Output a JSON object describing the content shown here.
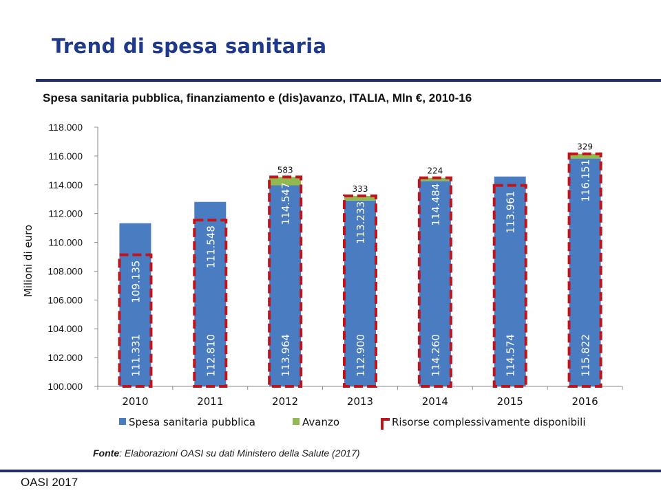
{
  "slide_title": "Trend di spesa sanitaria",
  "footer": "OASI 2017",
  "source": {
    "label": "Fonte",
    "text": ": Elaborazioni OASI su dati Ministero della Salute (2017)"
  },
  "colors": {
    "spesa": "#4a7cc2",
    "avanzo": "#92b94f",
    "risorse": "#c0141c",
    "title": "#1f3a8a",
    "rule": "#1f2f6e"
  },
  "chart_data": {
    "type": "bar",
    "title": "Spesa sanitaria pubblica, finanziamento e (dis)avanzo, ITALIA, Mln €, 2010-16",
    "ylabel": "Milioni di euro",
    "ylim": [
      100000,
      118000
    ],
    "yticks": [
      100000,
      102000,
      104000,
      106000,
      108000,
      110000,
      112000,
      114000,
      116000,
      118000
    ],
    "ytick_labels": [
      "100.000",
      "102.000",
      "104.000",
      "106.000",
      "108.000",
      "110.000",
      "112.000",
      "114.000",
      "116.000",
      "118.000"
    ],
    "categories": [
      "2010",
      "2011",
      "2012",
      "2013",
      "2014",
      "2015",
      "2016"
    ],
    "legend_placement": "bottom",
    "series": [
      {
        "name": "Spesa sanitaria pubblica",
        "values": [
          111331,
          112810,
          113964,
          112900,
          114260,
          114574,
          115822
        ],
        "labels": [
          "111.331",
          "112.810",
          "113.964",
          "112.900",
          "114.260",
          "114.574",
          "115.822"
        ]
      },
      {
        "name": "Avanzo",
        "values": [
          null,
          null,
          583,
          333,
          224,
          null,
          329
        ],
        "labels": [
          null,
          null,
          "583",
          "333",
          "224",
          null,
          "329"
        ]
      },
      {
        "name": "Risorse complessivamente disponibili",
        "values": [
          109135,
          111548,
          114547,
          113233,
          114484,
          113961,
          116151
        ],
        "labels": [
          "109.135",
          "111.548",
          "114.547",
          "113.233",
          "114.484",
          "113.961",
          "116.151"
        ]
      }
    ]
  }
}
